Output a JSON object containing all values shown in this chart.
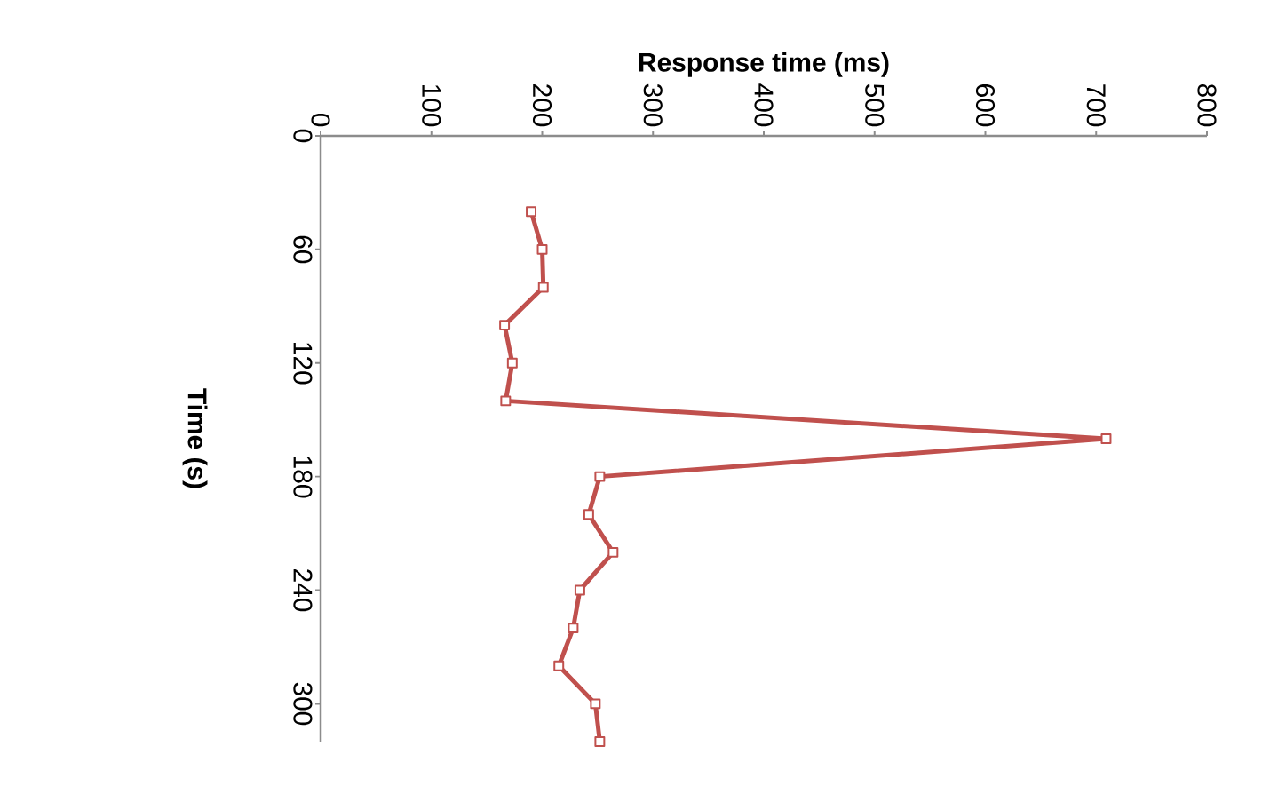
{
  "chart_data": {
    "type": "line",
    "xlabel": "Response time (ms)",
    "ylabel": "Time (s)",
    "x": [
      190,
      200,
      201,
      166,
      173,
      167,
      709,
      252,
      242,
      264,
      234,
      228,
      215,
      248,
      252
    ],
    "values": [
      40,
      60,
      80,
      100,
      120,
      140,
      160,
      180,
      200,
      220,
      240,
      260,
      280,
      300,
      320
    ],
    "color": "#c0504d",
    "marker": "square",
    "line_style": "solid",
    "xlim": [
      0,
      800
    ],
    "xticks": [
      0,
      100,
      200,
      300,
      400,
      500,
      600,
      700,
      800
    ],
    "ylim": [
      320,
      0
    ],
    "yticks": [
      0,
      60,
      120,
      180,
      240,
      300
    ]
  }
}
